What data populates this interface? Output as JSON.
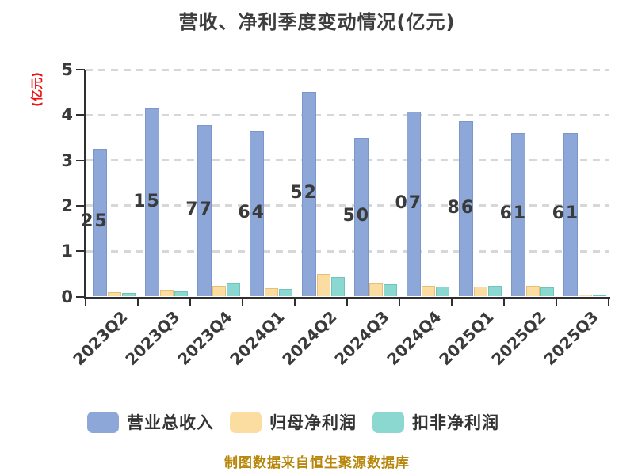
{
  "title": "营收、净利季度变动情况(亿元)",
  "y_axis_unit": "(亿元)",
  "footer_note": "制图数据来自恒生聚源数据库",
  "colors": {
    "revenue_bar": "#8da8d8",
    "revenue_bar_border": "#7b97c9",
    "net_profit_bar": "#fcdda1",
    "net_profit_bar_border": "#e9bf77",
    "non_gaap_bar": "#8ad8d0",
    "non_gaap_bar_border": "#6fc5bc",
    "title_text": "#3d3d3d",
    "axis_text": "#3a3a3a",
    "axis_line": "#2f2f2f",
    "gridline": "#d7d7d7",
    "y_unit_text": "#ee1111",
    "footer_text": "#b8860b"
  },
  "chart_data": {
    "type": "bar",
    "title": "营收、净利季度变动情况(亿元)",
    "categories": [
      "2023Q2",
      "2023Q3",
      "2023Q4",
      "2024Q1",
      "2024Q2",
      "2024Q3",
      "2024Q4",
      "2025Q1",
      "2025Q2",
      "2025Q3"
    ],
    "series": [
      {
        "name": "营业总收入",
        "color": "#8da8d8",
        "values": [
          3.25,
          4.15,
          3.77,
          3.64,
          4.52,
          3.5,
          4.07,
          3.86,
          3.61,
          3.61
        ],
        "visible_label_fragments": [
          "25",
          "15",
          "77",
          "64",
          "52",
          "50",
          "07",
          "86",
          "61",
          "61"
        ]
      },
      {
        "name": "归母净利润",
        "color": "#fcdda1",
        "values": [
          0.1,
          0.14,
          0.24,
          0.19,
          0.49,
          0.29,
          0.23,
          0.22,
          0.24,
          0.05
        ]
      },
      {
        "name": "扣非净利润",
        "color": "#8ad8d0",
        "values": [
          0.07,
          0.11,
          0.29,
          0.17,
          0.43,
          0.27,
          0.22,
          0.23,
          0.2,
          0.02
        ]
      }
    ],
    "ylabel": "(亿元)",
    "ylim": [
      0,
      5
    ],
    "yticks": [
      "0",
      "1",
      "2",
      "3",
      "4",
      "5"
    ],
    "grid": "horizontal dashed",
    "legend_position": "bottom",
    "x_labels_rotation_deg": 45
  },
  "legend": {
    "items": [
      {
        "label": "营业总收入",
        "color": "#8da8d8"
      },
      {
        "label": "归母净利润",
        "color": "#fcdda1"
      },
      {
        "label": "扣非净利润",
        "color": "#8ad8d0"
      }
    ]
  }
}
